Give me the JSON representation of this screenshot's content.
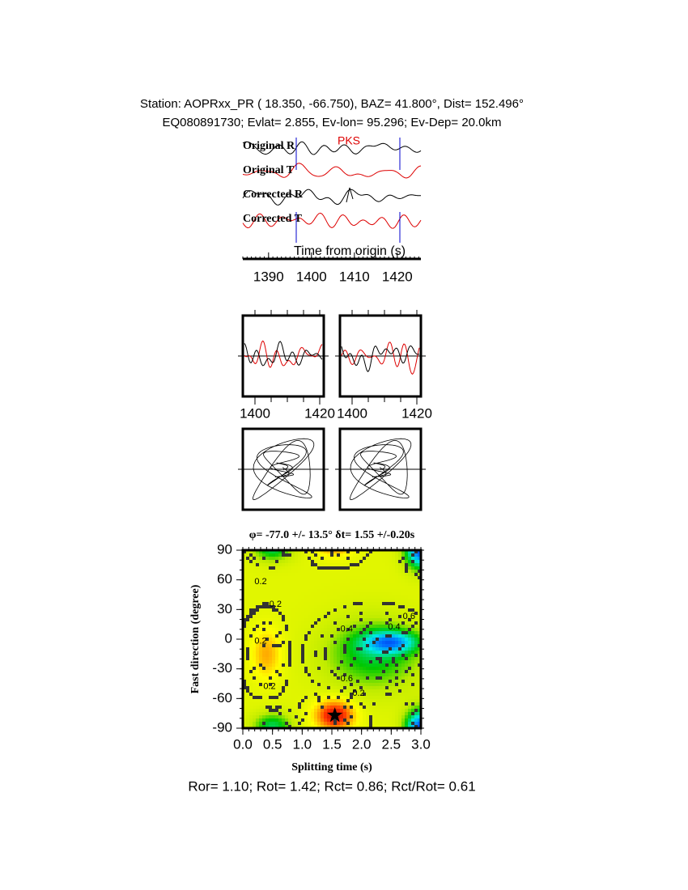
{
  "header": {
    "line1": "Station: AOPRxx_PR (  18.350,  -66.750), BAZ=   41.800°, Dist=  152.496°",
    "line2": "EQ080891730; Evlat=   2.855, Ev-lon=  95.296; Ev-Dep= 20.0km"
  },
  "chart_data": [
    {
      "type": "waveform",
      "trace_labels": [
        "Original R",
        "Original T",
        "Corrected R",
        "Corrected T"
      ],
      "phase_label": "PKS",
      "xlabel": "Time from origin (s)",
      "xlim": [
        1384,
        1425.5
      ],
      "xticks": [
        1390,
        1400,
        1410,
        1420
      ]
    },
    {
      "type": "waveform-pair",
      "xlim": [
        1396.25,
        1421.25
      ],
      "xticks": [
        1400,
        1420
      ]
    },
    {
      "type": "contour",
      "title": "φ= -77.0 +/- 13.5° δt= 1.55 +/-0.20s",
      "xlabel": "Splitting time (s)",
      "ylabel": "Fast direction (degree)",
      "xlim": [
        0,
        3
      ],
      "ylim": [
        -90,
        90
      ],
      "xticks": [
        {
          "value": 0,
          "label": "0.0"
        },
        0.5,
        {
          "value": 1,
          "label": "1.0"
        },
        1.5,
        {
          "value": 2,
          "label": "2.0"
        },
        2.5,
        {
          "value": 3,
          "label": "3.0"
        }
      ],
      "yticks": [
        -90,
        -60,
        -30,
        0,
        30,
        60,
        90
      ],
      "contour_labels": [
        "0.2",
        "0.2",
        "0.2",
        "0.2",
        "0.4",
        "0.6",
        "0.6",
        "0.4",
        "0.2"
      ],
      "best": {
        "splitting_time": 1.55,
        "fast_direction": -77
      }
    }
  ],
  "footer": "Ror= 1.10; Rot= 1.42; Rct= 0.86; Rct/Rot= 0.61"
}
